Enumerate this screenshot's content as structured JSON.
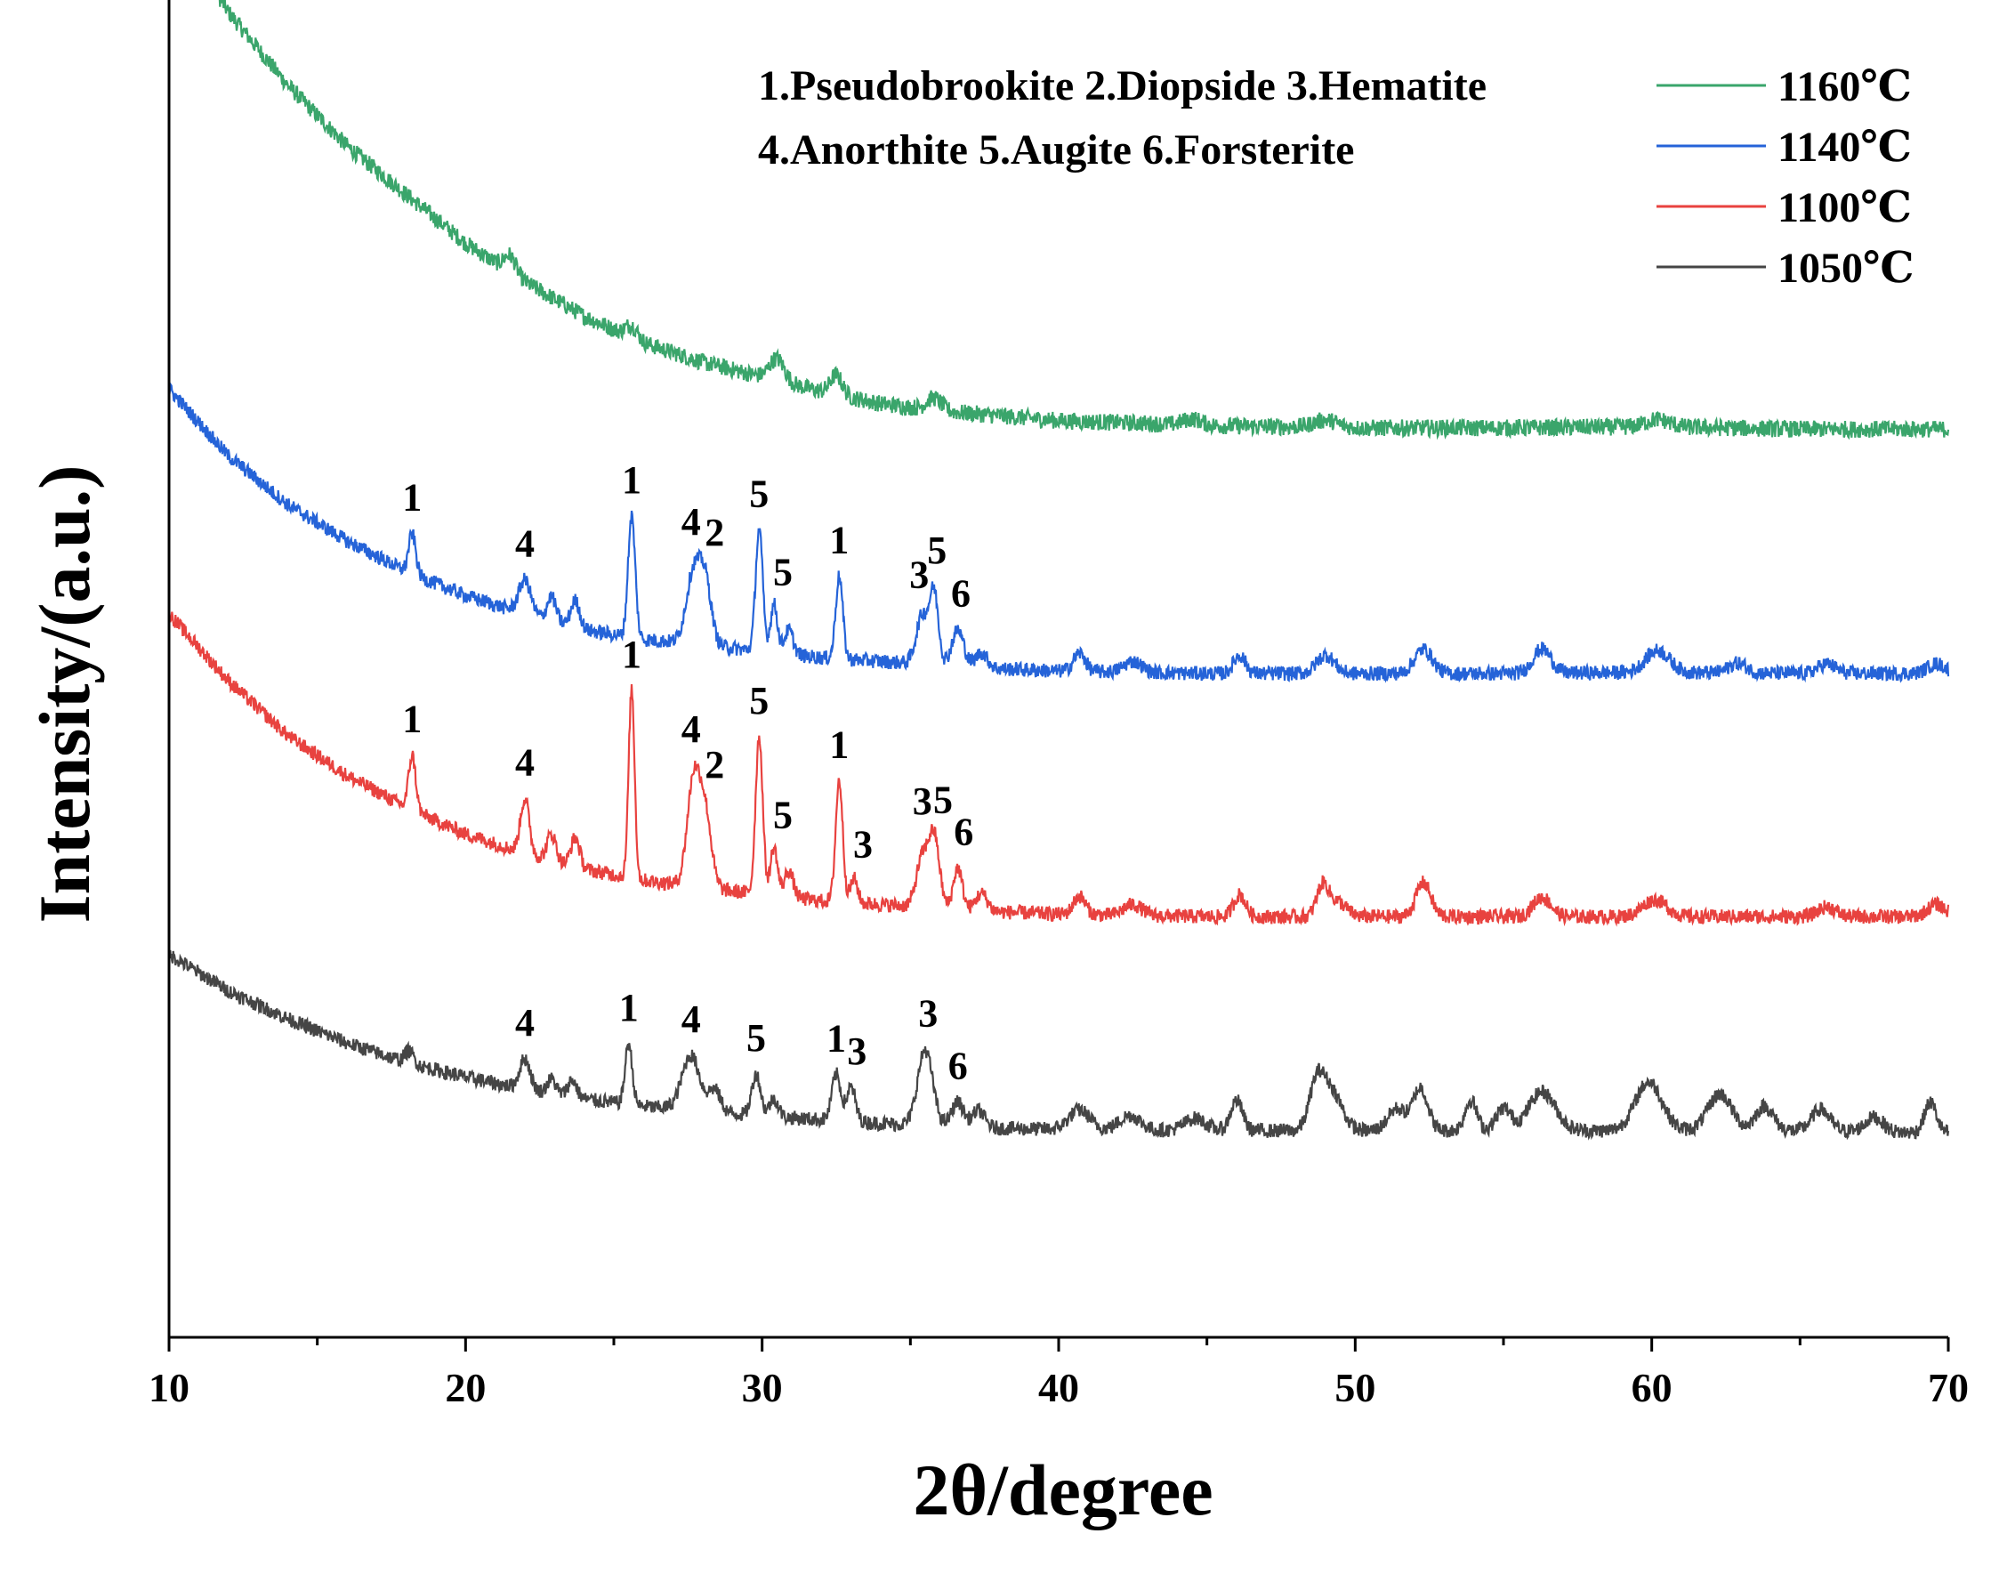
{
  "chart_data": {
    "type": "line",
    "title": "",
    "xlabel": "2θ/degree",
    "ylabel": "Intensity/(a.u.)",
    "xlim": [
      10,
      70
    ],
    "xticks": [
      10,
      20,
      30,
      40,
      50,
      60,
      70
    ],
    "ylim": [
      -100,
      1000
    ],
    "y_ticks_shown": false,
    "grid": false,
    "legend_position": "top-right",
    "phase_key": [
      "1.Pseudobrookite 2.Diopside 3.Hematite",
      "4.Anorthite  5.Augite  6.Forsterite"
    ],
    "series": [
      {
        "name": "1160℃",
        "color": "#3aa56b",
        "offset": 660,
        "noise": 7,
        "baseline": [
          [
            10,
            410
          ],
          [
            12,
            330
          ],
          [
            14,
            270
          ],
          [
            16,
            220
          ],
          [
            18,
            180
          ],
          [
            20,
            140
          ],
          [
            22,
            108
          ],
          [
            24,
            80
          ],
          [
            26,
            58
          ],
          [
            28,
            42
          ],
          [
            30,
            30
          ],
          [
            32,
            18
          ],
          [
            34,
            8
          ],
          [
            36,
            2
          ],
          [
            40,
            -6
          ],
          [
            45,
            -10
          ],
          [
            50,
            -12
          ],
          [
            55,
            -12
          ],
          [
            60,
            -11
          ],
          [
            65,
            -13
          ],
          [
            70,
            -13
          ]
        ],
        "peaks": [
          [
            21.5,
            14,
            0.2
          ],
          [
            25.6,
            10,
            0.2
          ],
          [
            30.5,
            18,
            0.25
          ],
          [
            32.5,
            16,
            0.2
          ],
          [
            35.8,
            10,
            0.25
          ],
          [
            44.5,
            5,
            0.3
          ],
          [
            49,
            6,
            0.4
          ],
          [
            60.2,
            6,
            0.4
          ]
        ],
        "labels": []
      },
      {
        "name": "1140℃",
        "color": "#2563d8",
        "offset": 450,
        "noise": 6,
        "baseline": [
          [
            10,
            230
          ],
          [
            12,
            175
          ],
          [
            14,
            135
          ],
          [
            16,
            105
          ],
          [
            18,
            80
          ],
          [
            20,
            60
          ],
          [
            22,
            45
          ],
          [
            24,
            32
          ],
          [
            26,
            24
          ],
          [
            28,
            20
          ],
          [
            30,
            14
          ],
          [
            32,
            9
          ],
          [
            34,
            6
          ],
          [
            36,
            3
          ],
          [
            38,
            0
          ],
          [
            40,
            -2
          ],
          [
            45,
            -4
          ],
          [
            50,
            -4
          ],
          [
            55,
            -4
          ],
          [
            60,
            -3
          ],
          [
            65,
            -4
          ],
          [
            70,
            -4
          ]
        ],
        "peaks": [
          [
            18.2,
            33,
            0.12
          ],
          [
            22,
            28,
            0.2
          ],
          [
            22.9,
            20,
            0.15
          ],
          [
            23.7,
            22,
            0.15
          ],
          [
            25.6,
            100,
            0.12
          ],
          [
            27.7,
            60,
            0.25
          ],
          [
            28.1,
            45,
            0.2
          ],
          [
            29.9,
            100,
            0.12
          ],
          [
            30.4,
            40,
            0.12
          ],
          [
            30.9,
            20,
            0.15
          ],
          [
            32.6,
            68,
            0.12
          ],
          [
            35.4,
            40,
            0.2
          ],
          [
            35.8,
            58,
            0.15
          ],
          [
            36.6,
            30,
            0.2
          ],
          [
            37.4,
            12,
            0.2
          ],
          [
            40.7,
            15,
            0.2
          ],
          [
            42.5,
            9,
            0.3
          ],
          [
            46.1,
            15,
            0.2
          ],
          [
            49,
            15,
            0.3
          ],
          [
            52.3,
            20,
            0.3
          ],
          [
            56.3,
            20,
            0.3
          ],
          [
            60.2,
            18,
            0.4
          ],
          [
            62.9,
            8,
            0.3
          ],
          [
            65.9,
            8,
            0.3
          ],
          [
            69.6,
            8,
            0.3
          ]
        ],
        "labels": [
          {
            "text": "1",
            "x": 18.2,
            "dy": 0
          },
          {
            "text": "4",
            "x": 22,
            "dy": 0
          },
          {
            "text": "1",
            "x": 25.6,
            "dy": 0
          },
          {
            "text": "4",
            "x": 27.6,
            "dy": 0
          },
          {
            "text": "2",
            "x": 28.4,
            "dy": -10
          },
          {
            "text": "5",
            "x": 29.9,
            "dy": 0
          },
          {
            "text": "5",
            "x": 30.7,
            "dy": 0
          },
          {
            "text": "1",
            "x": 32.6,
            "dy": 0
          },
          {
            "text": "3",
            "x": 35.3,
            "dy": 0
          },
          {
            "text": "5",
            "x": 35.9,
            "dy": 0
          },
          {
            "text": "6",
            "x": 36.7,
            "dy": 0
          }
        ]
      },
      {
        "name": "1100℃",
        "color": "#e8423f",
        "offset": 250,
        "noise": 6,
        "baseline": [
          [
            10,
            245
          ],
          [
            12,
            190
          ],
          [
            14,
            145
          ],
          [
            16,
            112
          ],
          [
            18,
            86
          ],
          [
            20,
            64
          ],
          [
            22,
            48
          ],
          [
            24,
            35
          ],
          [
            26,
            26
          ],
          [
            28,
            20
          ],
          [
            30,
            14
          ],
          [
            32,
            9
          ],
          [
            34,
            6
          ],
          [
            36,
            3
          ],
          [
            38,
            0
          ],
          [
            40,
            -2
          ],
          [
            45,
            -4
          ],
          [
            50,
            -4
          ],
          [
            55,
            -4
          ],
          [
            60,
            -4
          ],
          [
            65,
            -4
          ],
          [
            70,
            -4
          ]
        ],
        "peaks": [
          [
            18.2,
            45,
            0.12
          ],
          [
            22,
            45,
            0.15
          ],
          [
            22.9,
            22,
            0.15
          ],
          [
            23.7,
            24,
            0.15
          ],
          [
            25.6,
            155,
            0.1
          ],
          [
            27.7,
            90,
            0.22
          ],
          [
            28.1,
            55,
            0.2
          ],
          [
            29.9,
            130,
            0.12
          ],
          [
            30.4,
            40,
            0.12
          ],
          [
            30.9,
            22,
            0.15
          ],
          [
            32.6,
            100,
            0.12
          ],
          [
            33.1,
            20,
            0.12
          ],
          [
            35.4,
            40,
            0.2
          ],
          [
            35.8,
            58,
            0.18
          ],
          [
            36.6,
            34,
            0.15
          ],
          [
            37.4,
            14,
            0.2
          ],
          [
            40.7,
            15,
            0.2
          ],
          [
            42.5,
            9,
            0.3
          ],
          [
            46.1,
            18,
            0.2
          ],
          [
            48.9,
            25,
            0.2
          ],
          [
            49.4,
            12,
            0.3
          ],
          [
            52.3,
            28,
            0.25
          ],
          [
            56.3,
            16,
            0.3
          ],
          [
            60.1,
            14,
            0.4
          ],
          [
            65.9,
            8,
            0.3
          ],
          [
            69.6,
            10,
            0.3
          ]
        ],
        "labels": [
          {
            "text": "1",
            "x": 18.2,
            "dy": 0
          },
          {
            "text": "4",
            "x": 22,
            "dy": 0
          },
          {
            "text": "1",
            "x": 25.6,
            "dy": 0
          },
          {
            "text": "4",
            "x": 27.6,
            "dy": 0
          },
          {
            "text": "2",
            "x": 28.4,
            "dy": -10
          },
          {
            "text": "5",
            "x": 29.9,
            "dy": 0
          },
          {
            "text": "5",
            "x": 30.7,
            "dy": 0
          },
          {
            "text": "1",
            "x": 32.6,
            "dy": 0
          },
          {
            "text": "3",
            "x": 33.4,
            "dy": 0
          },
          {
            "text": "3",
            "x": 35.4,
            "dy": 0
          },
          {
            "text": "5",
            "x": 36.1,
            "dy": 0
          },
          {
            "text": "6",
            "x": 36.8,
            "dy": 0
          }
        ]
      },
      {
        "name": "1050℃",
        "color": "#454545",
        "offset": 70,
        "noise": 6,
        "baseline": [
          [
            10,
            145
          ],
          [
            12,
            115
          ],
          [
            14,
            92
          ],
          [
            16,
            72
          ],
          [
            18,
            56
          ],
          [
            20,
            44
          ],
          [
            22,
            34
          ],
          [
            24,
            26
          ],
          [
            26,
            20
          ],
          [
            28,
            16
          ],
          [
            30,
            12
          ],
          [
            32,
            9
          ],
          [
            34,
            6
          ],
          [
            36,
            4
          ],
          [
            38,
            2
          ],
          [
            40,
            1
          ],
          [
            45,
            0
          ],
          [
            50,
            0
          ],
          [
            55,
            0
          ],
          [
            60,
            0
          ],
          [
            65,
            0
          ],
          [
            70,
            -2
          ]
        ],
        "peaks": [
          [
            18.1,
            10,
            0.15
          ],
          [
            22,
            25,
            0.18
          ],
          [
            22.9,
            12,
            0.15
          ],
          [
            23.6,
            14,
            0.15
          ],
          [
            25.5,
            50,
            0.12
          ],
          [
            27.6,
            45,
            0.3
          ],
          [
            28.4,
            18,
            0.2
          ],
          [
            29.8,
            34,
            0.15
          ],
          [
            30.4,
            15,
            0.15
          ],
          [
            32.5,
            38,
            0.15
          ],
          [
            33,
            28,
            0.15
          ],
          [
            35.5,
            62,
            0.25
          ],
          [
            36.6,
            20,
            0.2
          ],
          [
            37.3,
            14,
            0.2
          ],
          [
            40.7,
            16,
            0.35
          ],
          [
            42.4,
            12,
            0.35
          ],
          [
            44.6,
            10,
            0.35
          ],
          [
            46,
            25,
            0.2
          ],
          [
            48.7,
            36,
            0.25
          ],
          [
            49.2,
            32,
            0.35
          ],
          [
            51.4,
            18,
            0.3
          ],
          [
            52.2,
            35,
            0.25
          ],
          [
            53.9,
            25,
            0.2
          ],
          [
            55,
            18,
            0.25
          ],
          [
            56.3,
            32,
            0.45
          ],
          [
            59.9,
            40,
            0.45
          ],
          [
            62.3,
            30,
            0.4
          ],
          [
            63.8,
            20,
            0.3
          ],
          [
            65.7,
            18,
            0.3
          ],
          [
            67.5,
            12,
            0.3
          ],
          [
            69.4,
            25,
            0.2
          ]
        ],
        "labels": [
          {
            "text": "4",
            "x": 22,
            "dy": 0
          },
          {
            "text": "1",
            "x": 25.5,
            "dy": 0
          },
          {
            "text": "4",
            "x": 27.6,
            "dy": 0
          },
          {
            "text": "5",
            "x": 29.8,
            "dy": 0
          },
          {
            "text": "1",
            "x": 32.5,
            "dy": 0
          },
          {
            "text": "3",
            "x": 33.2,
            "dy": 0
          },
          {
            "text": "3",
            "x": 35.6,
            "dy": 0
          },
          {
            "text": "6",
            "x": 36.6,
            "dy": 0
          }
        ]
      }
    ]
  }
}
